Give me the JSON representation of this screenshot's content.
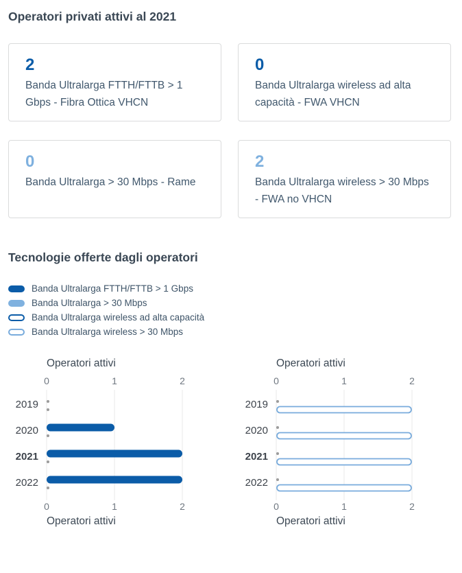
{
  "sections": {
    "cards_title": "Operatori privati attivi al 2021",
    "tech_title": "Tecnologie offerte dagli operatori"
  },
  "colors": {
    "blue_dark": "#0B5CA8",
    "blue_light": "#7FB1DF",
    "blue_outline": "#78ABDC",
    "dot_gray": "#9B9B9B",
    "grid": "#E8E8E9",
    "tick_text": "#6F7780",
    "year_text": "#3D434B",
    "axis_title_text": "#3C4854"
  },
  "cards": [
    {
      "value": "2",
      "accent": "dark",
      "label": "Banda Ultralarga FTTH/FTTB > 1 Gbps - Fibra Ottica VHCN"
    },
    {
      "value": "0",
      "accent": "dark",
      "label": "Banda Ultralarga wireless ad alta capacità - FWA VHCN"
    },
    {
      "value": "0",
      "accent": "light",
      "label": "Banda Ultralarga > 30 Mbps - Rame"
    },
    {
      "value": "2",
      "accent": "light",
      "label": "Banda Ultralarga wireless > 30 Mbps - FWA no VHCN"
    }
  ],
  "legend": [
    {
      "label": "Banda Ultralarga FTTH/FTTB > 1 Gbps",
      "style": "solid-dark"
    },
    {
      "label": "Banda Ultralarga > 30 Mbps",
      "style": "solid-light"
    },
    {
      "label": "Banda Ultralarga wireless ad alta capacità",
      "style": "outline-dark"
    },
    {
      "label": "Banda Ultralarga wireless > 30 Mbps",
      "style": "outline-light"
    }
  ],
  "chart_data": [
    {
      "type": "bar",
      "orientation": "horizontal",
      "title_top": "Operatori attivi",
      "title_bottom": "Operatori attivi",
      "categories": [
        "2019",
        "2020",
        "2021",
        "2022"
      ],
      "highlighted_category": "2021",
      "x_ticks": [
        0,
        1,
        2
      ],
      "xlim": [
        0,
        2
      ],
      "grid": true,
      "zero_value_rendering": "gray-dot",
      "series": [
        {
          "name": "Banda Ultralarga FTTH/FTTB > 1 Gbps",
          "style": "solid-dark",
          "values": [
            0,
            1,
            2,
            2
          ]
        },
        {
          "name": "Banda Ultralarga > 30 Mbps",
          "style": "solid-light",
          "values": [
            0,
            0,
            0,
            0
          ]
        }
      ]
    },
    {
      "type": "bar",
      "orientation": "horizontal",
      "title_top": "Operatori attivi",
      "title_bottom": "Operatori attivi",
      "categories": [
        "2019",
        "2020",
        "2021",
        "2022"
      ],
      "highlighted_category": "2021",
      "x_ticks": [
        0,
        1,
        2
      ],
      "xlim": [
        0,
        2
      ],
      "grid": true,
      "zero_value_rendering": "gray-dot",
      "series": [
        {
          "name": "Banda Ultralarga wireless ad alta capacità",
          "style": "outline-dark",
          "values": [
            0,
            0,
            0,
            0
          ]
        },
        {
          "name": "Banda Ultralarga wireless > 30 Mbps",
          "style": "outline-light",
          "values": [
            2,
            2,
            2,
            2
          ]
        }
      ]
    }
  ]
}
